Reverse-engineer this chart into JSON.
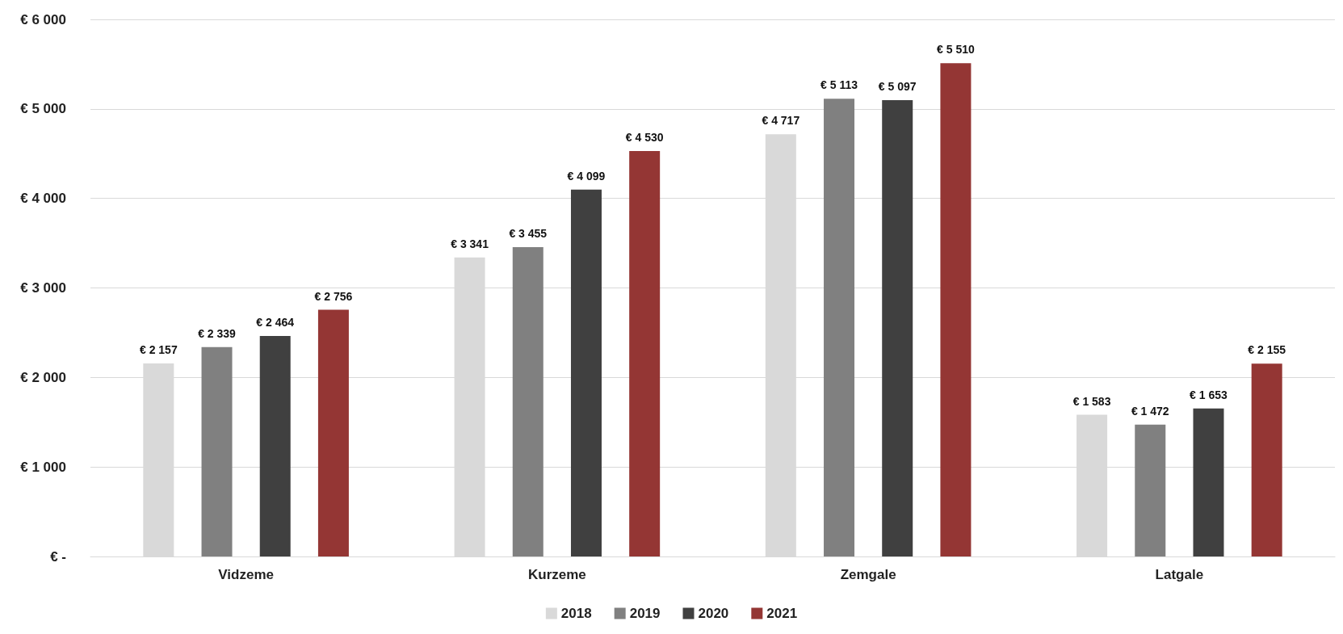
{
  "chart_data": {
    "type": "bar",
    "categories": [
      "Vidzeme",
      "Kurzeme",
      "Zemgale",
      "Latgale"
    ],
    "series": [
      {
        "name": "2018",
        "color": "#d9d9d9",
        "values": [
          2157,
          3341,
          4717,
          1583
        ],
        "value_labels": [
          "€ 2 157",
          "€ 3 341",
          "€ 4 717",
          "€ 1 583"
        ]
      },
      {
        "name": "2019",
        "color": "#808080",
        "values": [
          2339,
          3455,
          5113,
          1472
        ],
        "value_labels": [
          "€ 2 339",
          "€ 3 455",
          "€ 5 113",
          "€ 1 472"
        ]
      },
      {
        "name": "2020",
        "color": "#404040",
        "values": [
          2464,
          4099,
          5097,
          1653
        ],
        "value_labels": [
          "€ 2 464",
          "€ 4 099",
          "€ 5 097",
          "€ 1 653"
        ]
      },
      {
        "name": "2021",
        "color": "#943634",
        "values": [
          2756,
          4530,
          5510,
          2155
        ],
        "value_labels": [
          "€ 2 756",
          "€ 4 530",
          "€ 5 510",
          "€ 2 155"
        ]
      }
    ],
    "ylim": [
      0,
      6000
    ],
    "yticks": [
      {
        "value": 0,
        "label": "€ -"
      },
      {
        "value": 1000,
        "label": "€ 1 000"
      },
      {
        "value": 2000,
        "label": "€ 2 000"
      },
      {
        "value": 3000,
        "label": "€ 3 000"
      },
      {
        "value": 4000,
        "label": "€ 4 000"
      },
      {
        "value": 5000,
        "label": "€ 5 000"
      },
      {
        "value": 6000,
        "label": "€ 6 000"
      }
    ],
    "grid": "y",
    "legend": "bottom"
  }
}
